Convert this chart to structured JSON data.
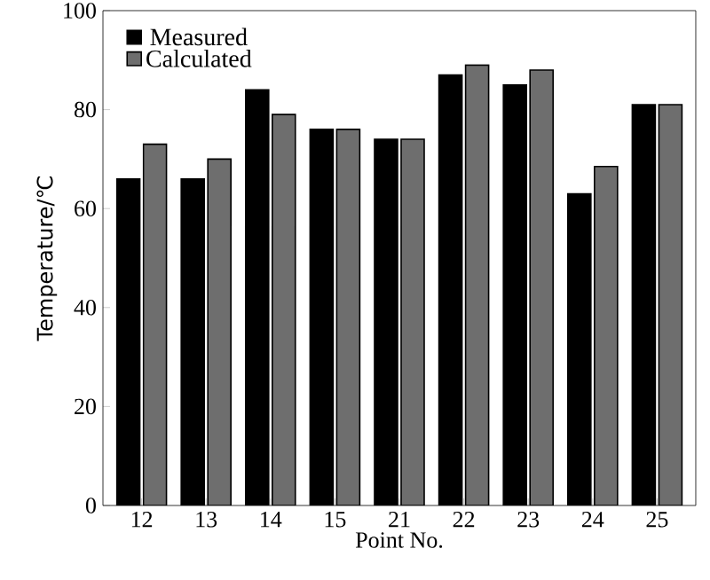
{
  "chart_data": {
    "type": "bar",
    "xlabel": "Point No.",
    "ylabel": "Temperature/℃",
    "categories": [
      "12",
      "13",
      "14",
      "15",
      "21",
      "22",
      "23",
      "24",
      "25"
    ],
    "series": [
      {
        "name": "Measured",
        "color": "#000000",
        "values": [
          66,
          66,
          84,
          76,
          74,
          87,
          85,
          63,
          81
        ]
      },
      {
        "name": "Calculated",
        "color": "#6e6e6e",
        "values": [
          73,
          70,
          79,
          76,
          74,
          89,
          88,
          68.5,
          81
        ]
      }
    ],
    "ylim": [
      0,
      100
    ],
    "yticks": [
      0,
      20,
      40,
      60,
      80,
      100
    ],
    "legend": "top left"
  }
}
